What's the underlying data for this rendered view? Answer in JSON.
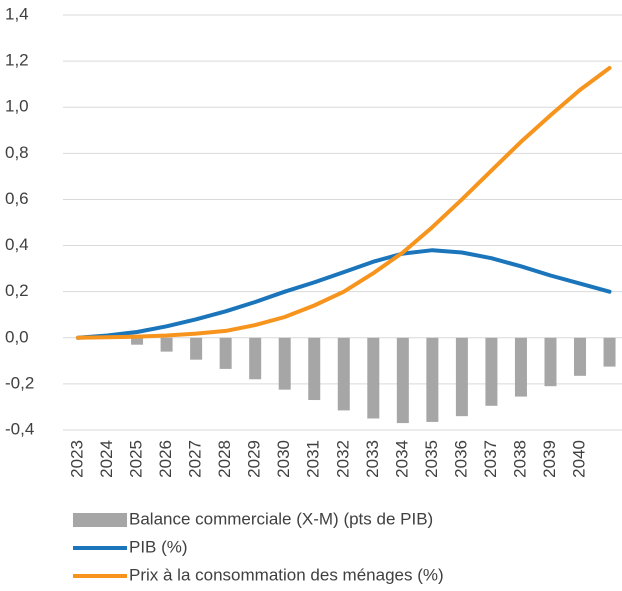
{
  "chart_data": {
    "type": "bar_line",
    "categories": [
      "2023",
      "2024",
      "2025",
      "2026",
      "2027",
      "2028",
      "2029",
      "2030",
      "2031",
      "2032",
      "2033",
      "2034",
      "2035",
      "2036",
      "2037",
      "2038",
      "2039",
      "2040",
      null
    ],
    "series": [
      {
        "name": "Balance commerciale (X-M) (pts de PIB)",
        "type": "bar",
        "color": "#a6a6a6",
        "values": [
          0,
          -0.005,
          -0.03,
          -0.06,
          -0.095,
          -0.135,
          -0.18,
          -0.225,
          -0.27,
          -0.315,
          -0.35,
          -0.37,
          -0.365,
          -0.34,
          -0.295,
          -0.255,
          -0.21,
          -0.165,
          -0.125
        ]
      },
      {
        "name": "PIB (%)",
        "type": "line",
        "color": "#1a75bb",
        "values": [
          0,
          0.01,
          0.025,
          0.05,
          0.08,
          0.115,
          0.155,
          0.2,
          0.24,
          0.285,
          0.33,
          0.365,
          0.38,
          0.37,
          0.345,
          0.31,
          0.27,
          0.235,
          0.2
        ]
      },
      {
        "name": "Prix à la consommation des ménages (%)",
        "type": "line",
        "color": "#f7941d",
        "values": [
          0,
          0.002,
          0.005,
          0.01,
          0.018,
          0.03,
          0.055,
          0.09,
          0.14,
          0.2,
          0.28,
          0.37,
          0.48,
          0.6,
          0.725,
          0.85,
          0.965,
          1.075,
          1.17
        ]
      }
    ],
    "ylim": [
      -0.4,
      1.4
    ],
    "yticks": [
      {
        "value": -0.4,
        "label": "-0,4"
      },
      {
        "value": -0.2,
        "label": "-0,2"
      },
      {
        "value": 0,
        "label": "0,0"
      },
      {
        "value": 0.2,
        "label": "0,2"
      },
      {
        "value": 0.4,
        "label": "0,4"
      },
      {
        "value": 0.6,
        "label": "0,6"
      },
      {
        "value": 0.8,
        "label": "0,8"
      },
      {
        "value": 1.0,
        "label": "1,0"
      },
      {
        "value": 1.2,
        "label": "1,2"
      },
      {
        "value": 1.4,
        "label": "1,4"
      }
    ],
    "grid": true,
    "legend": "bottom"
  }
}
